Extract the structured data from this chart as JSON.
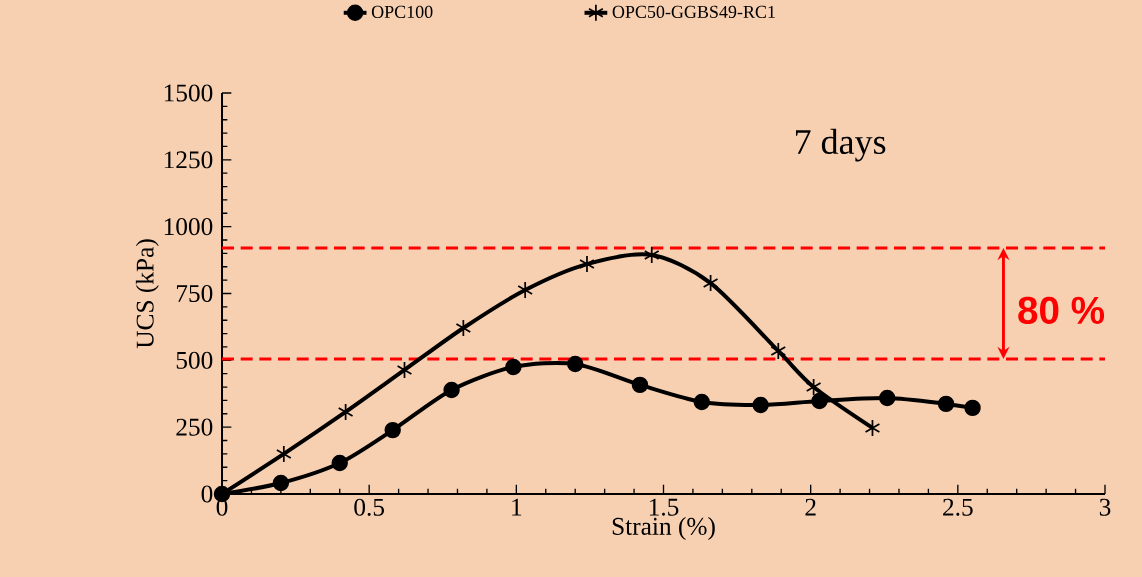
{
  "chart_data": {
    "type": "line",
    "xlabel": "Strain (%)",
    "ylabel": "UCS (kPa)",
    "series": [
      {
        "name": "OPC100",
        "color": "#000000",
        "marker": "circle",
        "x": [
          0,
          0.2,
          0.4,
          0.58,
          0.78,
          0.99,
          1.2,
          1.42,
          1.63,
          1.83,
          2.03,
          2.26,
          2.46,
          2.55
        ],
        "values": [
          0,
          41,
          116,
          239,
          389,
          475,
          486,
          408,
          344,
          333,
          348,
          359,
          337,
          322
        ]
      },
      {
        "name": "OPC50-GGBS49-RC1",
        "color": "#000000",
        "marker": "cross",
        "x": [
          0,
          0.21,
          0.42,
          0.62,
          0.82,
          1.03,
          1.24,
          1.46,
          1.66,
          1.89,
          2.01,
          2.21
        ],
        "values": [
          0,
          150,
          307,
          464,
          621,
          763,
          860,
          894,
          789,
          535,
          400,
          247
        ]
      }
    ],
    "xlim": [
      0,
      3
    ],
    "xticks": [
      0,
      0.5,
      1,
      1.5,
      2,
      2.5,
      3
    ],
    "ylim": [
      0,
      1500
    ],
    "yticks": [
      0,
      250,
      500,
      750,
      1000,
      1250,
      1500
    ],
    "ref_lines": [
      {
        "axis": "y",
        "value": 920,
        "color": "#ff0000",
        "line_style": "dashed"
      },
      {
        "axis": "y",
        "value": 505,
        "color": "#ff0000",
        "line_style": "dashed"
      }
    ],
    "annotations": [
      "7 days",
      "80 %"
    ],
    "legend": "top",
    "grid": false,
    "line_style": "solid"
  }
}
